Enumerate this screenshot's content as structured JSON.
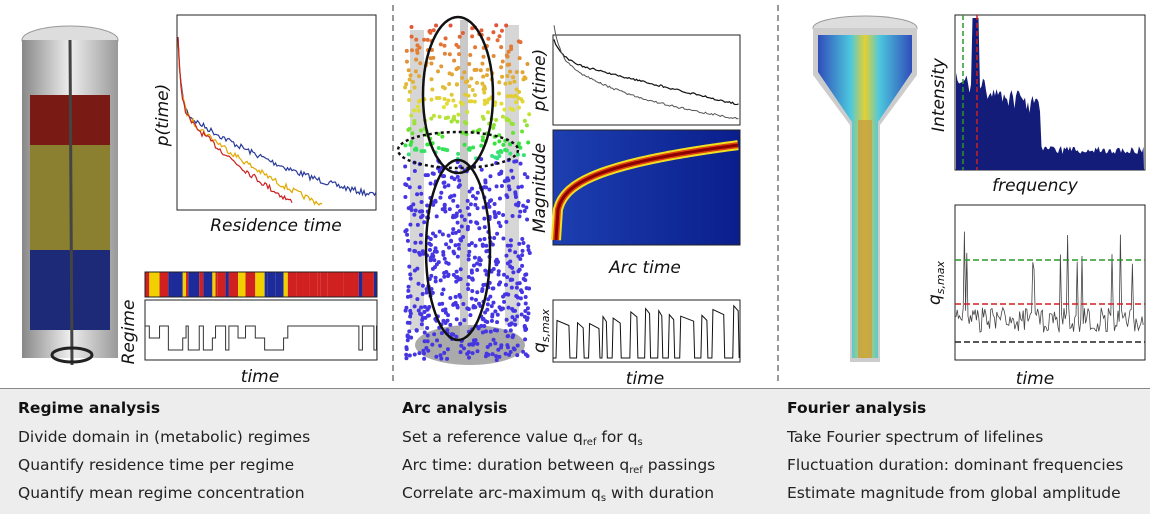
{
  "panels": [
    {
      "axis_labels": {
        "p_time": "p(time)",
        "residence": "Residence time",
        "regime": "Regime",
        "time": "time"
      }
    },
    {
      "axis_labels": {
        "p_time": "p(time)",
        "magnitude": "Magnitude",
        "arc_time": "Arc time",
        "q": {
          "base": "q",
          "sub": "s,max"
        },
        "time": "time"
      }
    },
    {
      "axis_labels": {
        "intensity": "Intensity",
        "frequency": "frequency",
        "q": {
          "base": "q",
          "sub": "s,max"
        },
        "time": "time"
      }
    }
  ],
  "sections": [
    {
      "title": "Regime analysis",
      "lines": [
        [
          "Divide domain in (metabolic) regimes"
        ],
        [
          "Quantify residence time per regime"
        ],
        [
          "Quantify mean regime concentration"
        ]
      ]
    },
    {
      "title": "Arc analysis",
      "lines": [
        [
          "Set a reference value q",
          "ref",
          " for q",
          "s"
        ],
        [
          "Arc time: duration between q",
          "ref",
          " passings"
        ],
        [
          "Correlate arc-maximum q",
          "s",
          " with duration"
        ]
      ]
    },
    {
      "title": "Fourier analysis",
      "lines": [
        [
          "Take Fourier spectrum of lifelines"
        ],
        [
          "Fluctuation duration: dominant frequencies"
        ],
        [
          "Estimate magnitude from global amplitude"
        ]
      ]
    }
  ]
}
